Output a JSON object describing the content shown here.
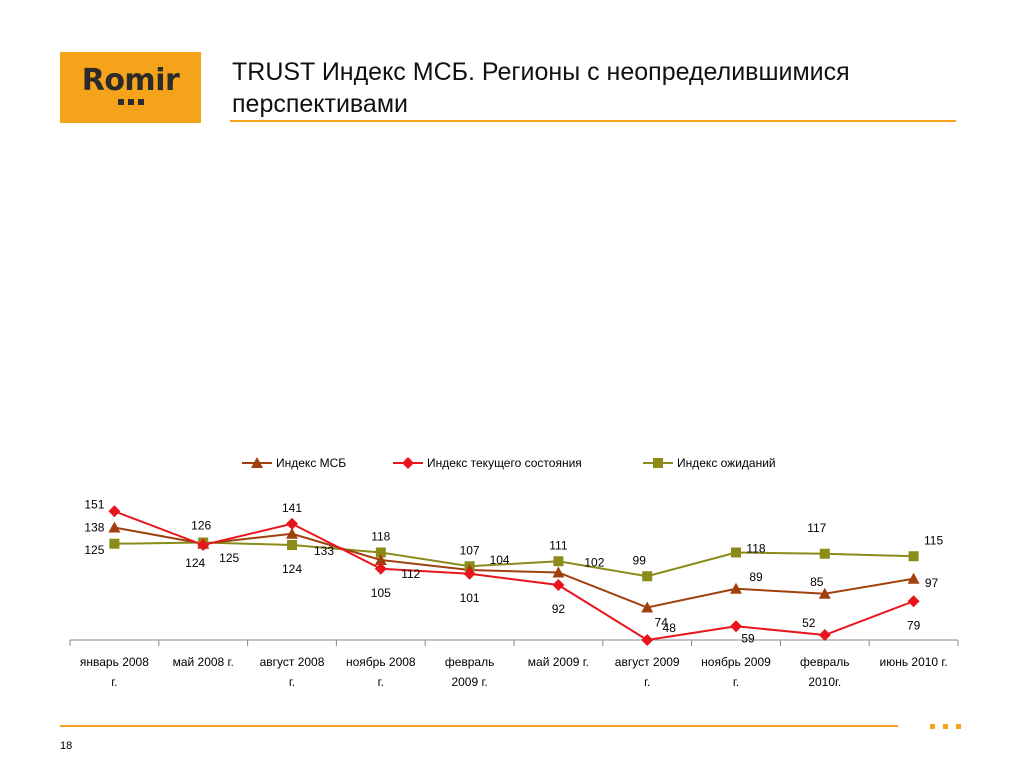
{
  "logo": {
    "text": "Romir"
  },
  "title": "TRUST Индекс МСБ. Регионы с неопределившимися перспективами",
  "page_number": "18",
  "chart_data": {
    "type": "line",
    "categories": [
      [
        "январь 2008",
        "г."
      ],
      [
        "май 2008 г."
      ],
      [
        "август 2008",
        "г."
      ],
      [
        "ноябрь 2008",
        "г."
      ],
      [
        "февраль",
        "2009 г."
      ],
      [
        "май 2009 г."
      ],
      [
        "август 2009",
        "г."
      ],
      [
        "ноябрь 2009",
        "г."
      ],
      [
        "февраль",
        "2010г."
      ],
      [
        "июнь 2010 г."
      ]
    ],
    "series": [
      {
        "name": "Индекс МСБ",
        "color": "#a0410d",
        "marker": "triangle",
        "values": [
          138,
          125,
          133,
          112,
          104,
          102,
          74,
          89,
          85,
          97
        ]
      },
      {
        "name": "Индекс текущего состояния",
        "color": "#e8161c",
        "marker": "diamond",
        "values": [
          151,
          124,
          141,
          105,
          101,
          92,
          48,
          59,
          52,
          79
        ]
      },
      {
        "name": "Индекс ожиданий",
        "color": "#8b8b1a",
        "marker": "square",
        "values": [
          125,
          126,
          124,
          118,
          107,
          111,
          99,
          118,
          117,
          115
        ]
      }
    ],
    "ylim": [
      40,
      160
    ],
    "legend_position": "top"
  }
}
